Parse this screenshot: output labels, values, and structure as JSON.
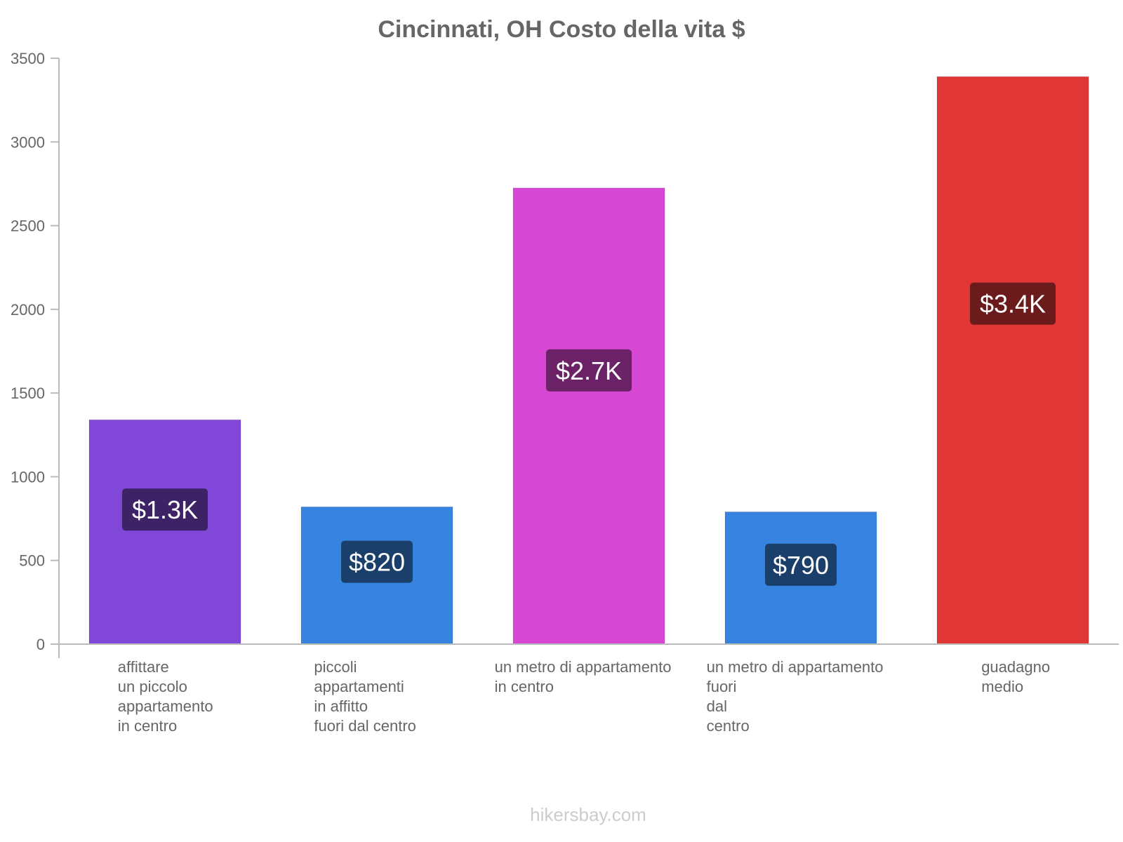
{
  "chart_data": {
    "type": "bar",
    "title": "Cincinnati, OH Costo della vita $",
    "xlabel": "",
    "ylabel": "",
    "ylim": [
      0,
      3500
    ],
    "yticks": [
      0,
      500,
      1000,
      1500,
      2000,
      2500,
      3000,
      3500
    ],
    "grid": false,
    "categories": [
      [
        "affittare",
        "un piccolo",
        "appartamento",
        "in centro"
      ],
      [
        "piccoli",
        "appartamenti",
        "in affitto",
        "fuori dal centro"
      ],
      [
        "un metro di appartamento",
        "in centro"
      ],
      [
        "un metro di appartamento",
        "fuori",
        "dal",
        "centro"
      ],
      [
        "guadagno",
        "medio"
      ]
    ],
    "values": [
      1340,
      820,
      2725,
      790,
      3390
    ],
    "data_labels": [
      "$1.3K",
      "$820",
      "$2.7K",
      "$790",
      "$3.4K"
    ],
    "bar_colors": [
      "#8047d8",
      "#3683e0",
      "#d647d4",
      "#3683e0",
      "#e03636"
    ],
    "label_colors": [
      "#3d2266",
      "#1b3f6b",
      "#6b2266",
      "#1b3f6b",
      "#6b1b1b"
    ]
  },
  "footer": {
    "watermark": "hikersbay.com"
  }
}
